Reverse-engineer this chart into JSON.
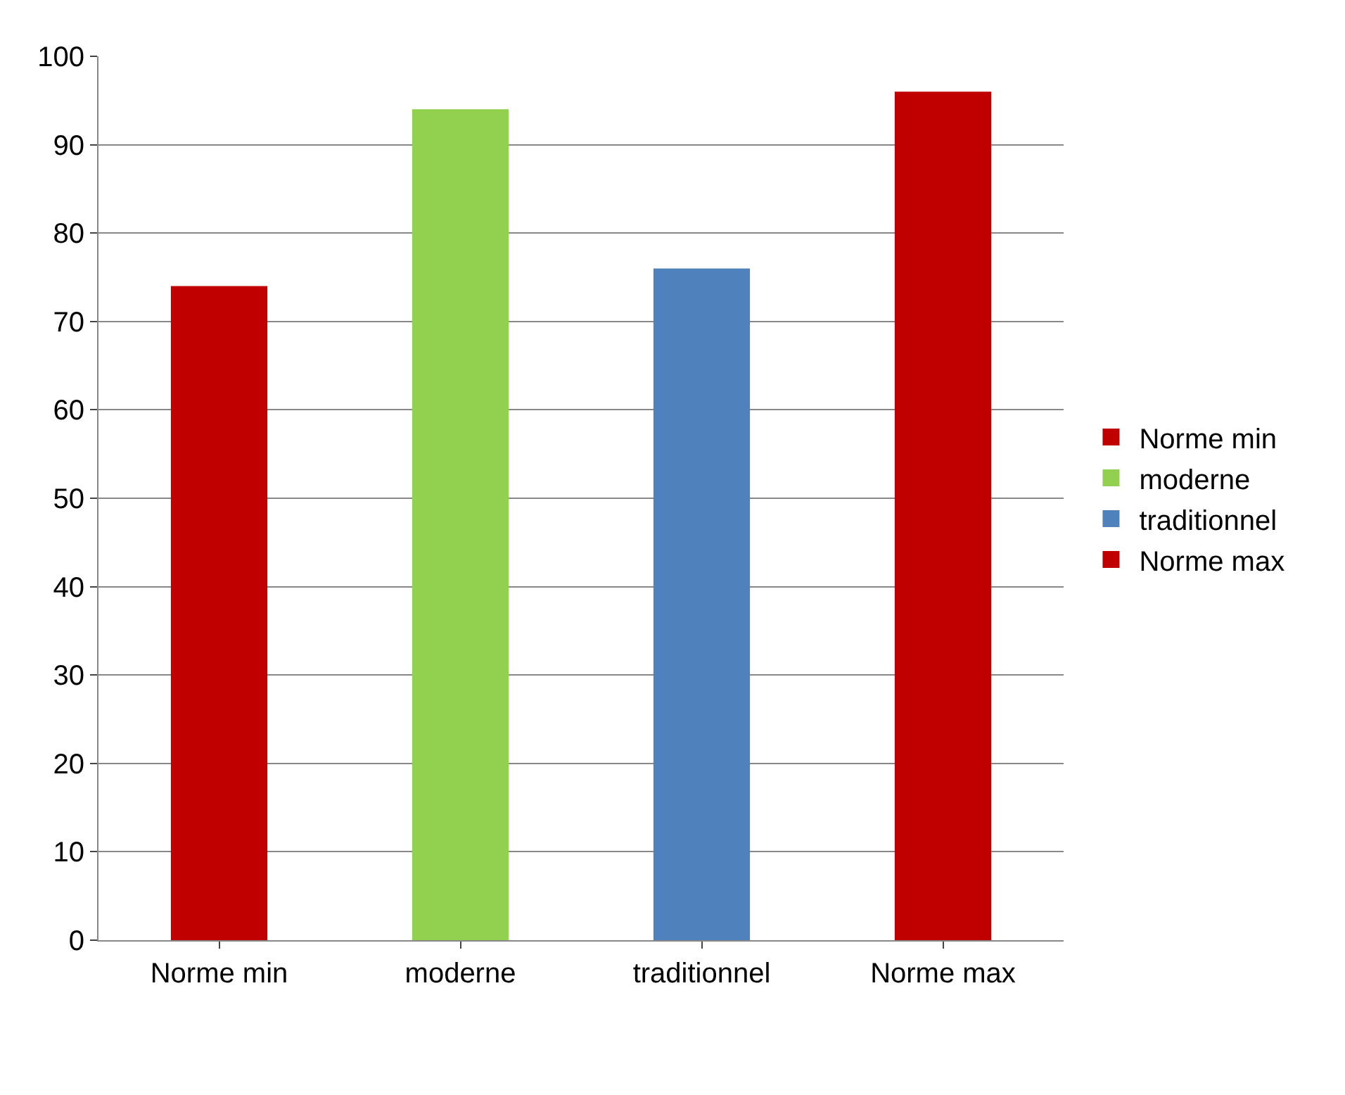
{
  "chart_data": {
    "type": "bar",
    "categories": [
      "Norme min",
      "moderne",
      "traditionnel",
      "Norme max"
    ],
    "series": [
      {
        "name": "Norme min",
        "color": "#c00000",
        "values": [
          74,
          null,
          null,
          null
        ]
      },
      {
        "name": "moderne",
        "color": "#92d050",
        "values": [
          null,
          94,
          null,
          null
        ]
      },
      {
        "name": "traditionnel",
        "color": "#4f81bd",
        "values": [
          null,
          null,
          76,
          null
        ]
      },
      {
        "name": "Norme max",
        "color": "#c00000",
        "values": [
          null,
          null,
          null,
          96
        ]
      }
    ],
    "ylim": [
      0,
      100
    ],
    "yticks": [
      0,
      10,
      20,
      30,
      40,
      50,
      60,
      70,
      80,
      90,
      100
    ],
    "grid": "y",
    "legend": "right"
  }
}
